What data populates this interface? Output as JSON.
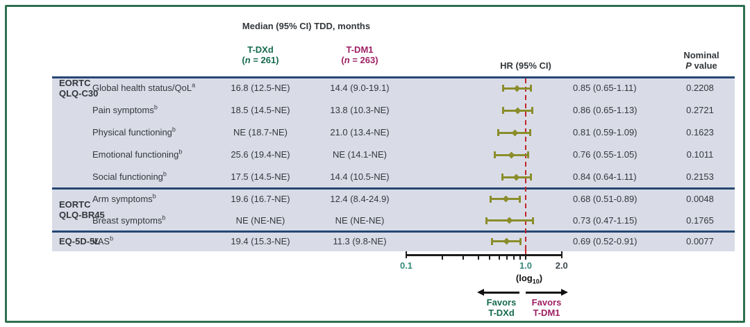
{
  "header": {
    "median_title": "Median (95% CI) TDD, months",
    "tdxd": {
      "label": "T-DXd",
      "n": "261"
    },
    "tdm1": {
      "label": "T-DM1",
      "n": "263"
    },
    "hr_label": "HR (95% CI)",
    "p_header": {
      "line1": "Nominal",
      "italic": "P",
      "rest": " value"
    }
  },
  "chart_data": {
    "type": "scatter",
    "variant": "forest-plot",
    "title": "Median (95% CI) TDD, months",
    "xlabel": "(log10)",
    "x_axis": {
      "scale": "log10",
      "range": [
        0.1,
        2.0
      ],
      "reference_line": 1.0,
      "tick_labels": [
        {
          "text": "0.1",
          "value": 0.1,
          "tone": "teal"
        },
        {
          "text": "1.0",
          "value": 1.0,
          "tone": "teal"
        },
        {
          "text": "2.0",
          "value": 2.0,
          "tone": "dark"
        }
      ],
      "minor_ticks": [
        0.2,
        0.3,
        0.4,
        0.5,
        0.6,
        0.7,
        0.8,
        0.9,
        1.0
      ]
    },
    "groups": [
      {
        "label_lines": [
          "EORTC",
          "QLQ-C30"
        ],
        "rows": [
          {
            "scale": "Global health status/QoL",
            "sup": "a",
            "tdxd": "16.8 (12.5-NE)",
            "tdm1": "14.4 (9.0-19.1)",
            "hr": "0.85 (0.65-1.11)",
            "p": "0.2208",
            "est": 0.85,
            "lo": 0.65,
            "hi": 1.11
          },
          {
            "scale": "Pain symptoms",
            "sup": "b",
            "tdxd": "18.5 (14.5-NE)",
            "tdm1": "13.8 (10.3-NE)",
            "hr": "0.86 (0.65-1.13)",
            "p": "0.2721",
            "est": 0.86,
            "lo": 0.65,
            "hi": 1.13
          },
          {
            "scale": "Physical functioning",
            "sup": "b",
            "tdxd": "NE (18.7-NE)",
            "tdm1": "21.0 (13.4-NE)",
            "hr": "0.81 (0.59-1.09)",
            "p": "0.1623",
            "est": 0.81,
            "lo": 0.59,
            "hi": 1.09
          },
          {
            "scale": "Emotional functioning",
            "sup": "b",
            "tdxd": "25.6 (19.4-NE)",
            "tdm1": "NE (14.1-NE)",
            "hr": "0.76 (0.55-1.05)",
            "p": "0.1011",
            "est": 0.76,
            "lo": 0.55,
            "hi": 1.05
          },
          {
            "scale": "Social functioning",
            "sup": "b",
            "tdxd": "17.5 (14.5-NE)",
            "tdm1": "14.4 (10.5-NE)",
            "hr": "0.84 (0.64-1.11)",
            "p": "0.2153",
            "est": 0.84,
            "lo": 0.64,
            "hi": 1.11
          }
        ]
      },
      {
        "label_lines": [
          "EORTC",
          "QLQ-BR45"
        ],
        "rows": [
          {
            "scale": "Arm symptoms",
            "sup": "b",
            "tdxd": "19.6 (16.7-NE)",
            "tdm1": "12.4 (8.4-24.9)",
            "hr": "0.68 (0.51-0.89)",
            "p": "0.0048",
            "est": 0.68,
            "lo": 0.51,
            "hi": 0.89
          },
          {
            "scale": "Breast symptoms",
            "sup": "b",
            "tdxd": "NE (NE-NE)",
            "tdm1": "NE (NE-NE)",
            "hr": "0.73 (0.47-1.15)",
            "p": "0.1765",
            "est": 0.73,
            "lo": 0.47,
            "hi": 1.15
          }
        ]
      },
      {
        "label_lines": [
          "EQ-5D-5L"
        ],
        "rows": [
          {
            "scale": "VAS",
            "sup": "b",
            "tdxd": "19.4 (15.3-NE)",
            "tdm1": "11.3 (9.8-NE)",
            "hr": "0.69 (0.52-0.91)",
            "p": "0.0077",
            "est": 0.69,
            "lo": 0.52,
            "hi": 0.91
          }
        ]
      }
    ]
  },
  "axis_log_label": {
    "pre": "(log",
    "sub": "10",
    "post": ")"
  },
  "favors": {
    "left": {
      "line1": "Favors",
      "line2": "T-DXd",
      "direction": "left"
    },
    "right": {
      "line1": "Favors",
      "line2": "T-DM1",
      "direction": "right"
    }
  },
  "colors": {
    "tdxd_green": "#166a4e",
    "tdm1_magenta": "#9e1f63",
    "marker_olive": "#8b8d2b",
    "reference_red": "#c0262b",
    "rule_navy": "#254672",
    "band_bg": "#d9dce7",
    "border_green": "#2e7050",
    "axis_teal": "#35897a",
    "axis_dark": "#3e4950",
    "axis_black": "#1c1c1c",
    "text_dark": "#33373b"
  }
}
